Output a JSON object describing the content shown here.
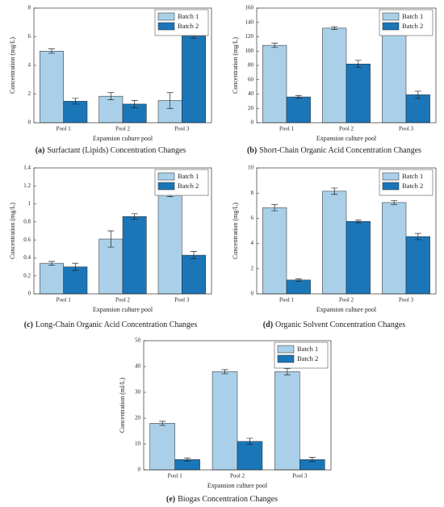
{
  "chart_data": [
    {
      "type": "bar",
      "caption_label": "(a)",
      "caption": "Surfactant (Lipids) Concentration Changes",
      "x_label": "Expansion culture pool",
      "y_label": "Concentration (mg/L)",
      "categories": [
        "Pool 1",
        "Pool 2",
        "Pool 3"
      ],
      "series": [
        {
          "name": "Batch 1",
          "color": "#a9d0e8",
          "values": [
            5.0,
            1.85,
            1.55
          ],
          "errors": [
            0.15,
            0.25,
            0.55
          ]
        },
        {
          "name": "Batch 2",
          "color": "#1b76b8",
          "values": [
            1.5,
            1.3,
            6.05
          ],
          "errors": [
            0.2,
            0.25,
            0.15
          ]
        }
      ],
      "ylim": [
        0,
        8
      ],
      "yticks": [
        0,
        2,
        4,
        6,
        8
      ],
      "legend": "upper right"
    },
    {
      "type": "bar",
      "caption_label": "(b)",
      "caption": "Short-Chain Organic Acid Concentration Changes",
      "x_label": "Expansion culture pool",
      "y_label": "Concentration (mg/L)",
      "categories": [
        "Pool 1",
        "Pool 2",
        "Pool 3"
      ],
      "series": [
        {
          "name": "Batch 1",
          "color": "#a9d0e8",
          "values": [
            108,
            132,
            129
          ],
          "errors": [
            3,
            2,
            2
          ]
        },
        {
          "name": "Batch 2",
          "color": "#1b76b8",
          "values": [
            36,
            82,
            39
          ],
          "errors": [
            2,
            5,
            5
          ]
        }
      ],
      "ylim": [
        0,
        160
      ],
      "yticks": [
        0,
        20,
        40,
        60,
        80,
        100,
        120,
        140,
        160
      ],
      "legend": "upper right"
    },
    {
      "type": "bar",
      "caption_label": "(c)",
      "caption": "Long-Chain Organic Acid Concentration Changes",
      "x_label": "Expansion culture pool",
      "y_label": "Concentration (mg/L)",
      "categories": [
        "Pool 1",
        "Pool 2",
        "Pool 3"
      ],
      "series": [
        {
          "name": "Batch 1",
          "color": "#a9d0e8",
          "values": [
            0.34,
            0.61,
            1.1
          ],
          "errors": [
            0.02,
            0.09,
            0.02
          ]
        },
        {
          "name": "Batch 2",
          "color": "#1b76b8",
          "values": [
            0.3,
            0.86,
            0.43
          ],
          "errors": [
            0.04,
            0.03,
            0.04
          ]
        }
      ],
      "ylim": [
        0,
        1.4
      ],
      "yticks": [
        0,
        0.2,
        0.4,
        0.6,
        0.8,
        1,
        1.2,
        1.4
      ],
      "legend": "upper right"
    },
    {
      "type": "bar",
      "caption_label": "(d)",
      "caption": "Organic Solvent Concentration Changes",
      "x_label": "Expansion culture pool",
      "y_label": "Concentration (mg/L)",
      "categories": [
        "Pool 1",
        "Pool 2",
        "Pool 3"
      ],
      "series": [
        {
          "name": "Batch 1",
          "color": "#a9d0e8",
          "values": [
            6.85,
            8.15,
            7.25
          ],
          "errors": [
            0.25,
            0.25,
            0.15
          ]
        },
        {
          "name": "Batch 2",
          "color": "#1b76b8",
          "values": [
            1.1,
            5.75,
            4.55
          ],
          "errors": [
            0.1,
            0.1,
            0.25
          ]
        }
      ],
      "ylim": [
        0,
        10
      ],
      "yticks": [
        0,
        2,
        4,
        6,
        8,
        10
      ],
      "legend": "upper right"
    },
    {
      "type": "bar",
      "caption_label": "(e)",
      "caption": "Biogas Concentration Changes",
      "x_label": "Expansion culture pool",
      "y_label": "Concentration (ml/L)",
      "categories": [
        "Pool 1",
        "Pool 2",
        "Pool 3"
      ],
      "series": [
        {
          "name": "Batch 1",
          "color": "#a9d0e8",
          "values": [
            18,
            38,
            38
          ],
          "errors": [
            0.8,
            0.8,
            1.2
          ]
        },
        {
          "name": "Batch 2",
          "color": "#1b76b8",
          "values": [
            4,
            11,
            4
          ],
          "errors": [
            0.6,
            1.2,
            0.8
          ]
        }
      ],
      "ylim": [
        0,
        50
      ],
      "yticks": [
        0,
        10,
        20,
        30,
        40,
        50
      ],
      "legend": "upper right"
    }
  ]
}
